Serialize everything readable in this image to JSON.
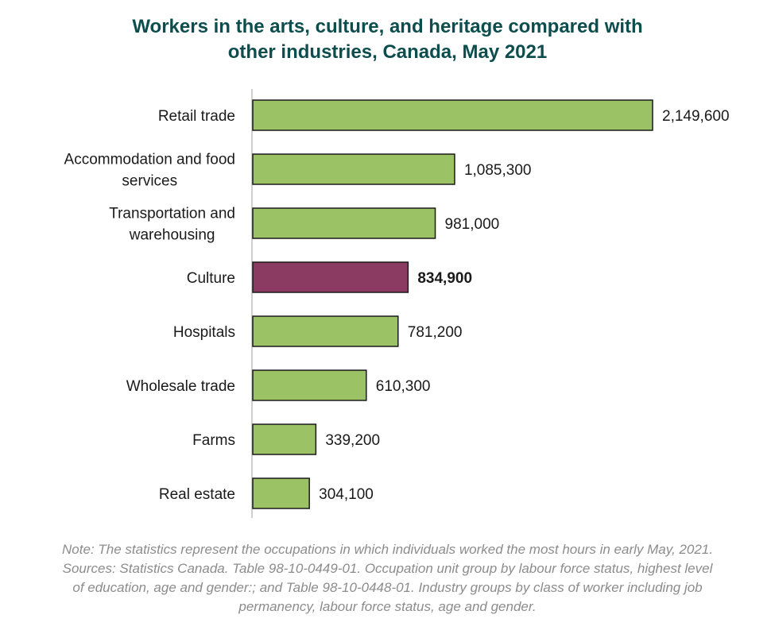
{
  "chart_data": {
    "type": "bar",
    "orientation": "horizontal",
    "title": "Workers in the arts, culture, and heritage compared with other industries, Canada, May 2021",
    "title_lines": [
      "Workers in the arts, culture, and heritage compared with",
      "other industries, Canada, May 2021"
    ],
    "categories": [
      "Retail trade",
      "Accommodation and food services",
      "Transportation and warehousing",
      "Culture",
      "Hospitals",
      "Wholesale trade",
      "Farms",
      "Real estate"
    ],
    "category_lines": [
      [
        "Retail trade"
      ],
      [
        "Accommodation and food",
        "services"
      ],
      [
        "Transportation and",
        "warehousing"
      ],
      [
        "Culture"
      ],
      [
        "Hospitals"
      ],
      [
        "Wholesale trade"
      ],
      [
        "Farms"
      ],
      [
        "Real estate"
      ]
    ],
    "values": [
      2149600,
      1085300,
      981000,
      834900,
      781200,
      610300,
      339200,
      304100
    ],
    "value_labels": [
      "2,149,600",
      "1,085,300",
      "981,000",
      "834,900",
      "781,200",
      "610,300",
      "339,200",
      "304,100"
    ],
    "highlight_category": "Culture",
    "colors": {
      "bar": "#9bc264",
      "highlight": "#8b3a62",
      "bar_border": "#1a1a1a",
      "title": "#0d4d4d",
      "note": "#8c8c8c"
    },
    "xlim": [
      0,
      2149600
    ],
    "grid": false,
    "legend": "none",
    "xlabel": "",
    "ylabel": ""
  },
  "note_lines": [
    "Note: The statistics represent the occupations in which individuals worked the most hours in early May, 2021.",
    "Sources: Statistics Canada. Table 98-10-0449-01. Occupation unit group by labour force status, highest level",
    "of education, age and gender:; and Table 98-10-0448-01. Industry groups by class of worker including job",
    "permanency, labour force status, age and gender."
  ]
}
